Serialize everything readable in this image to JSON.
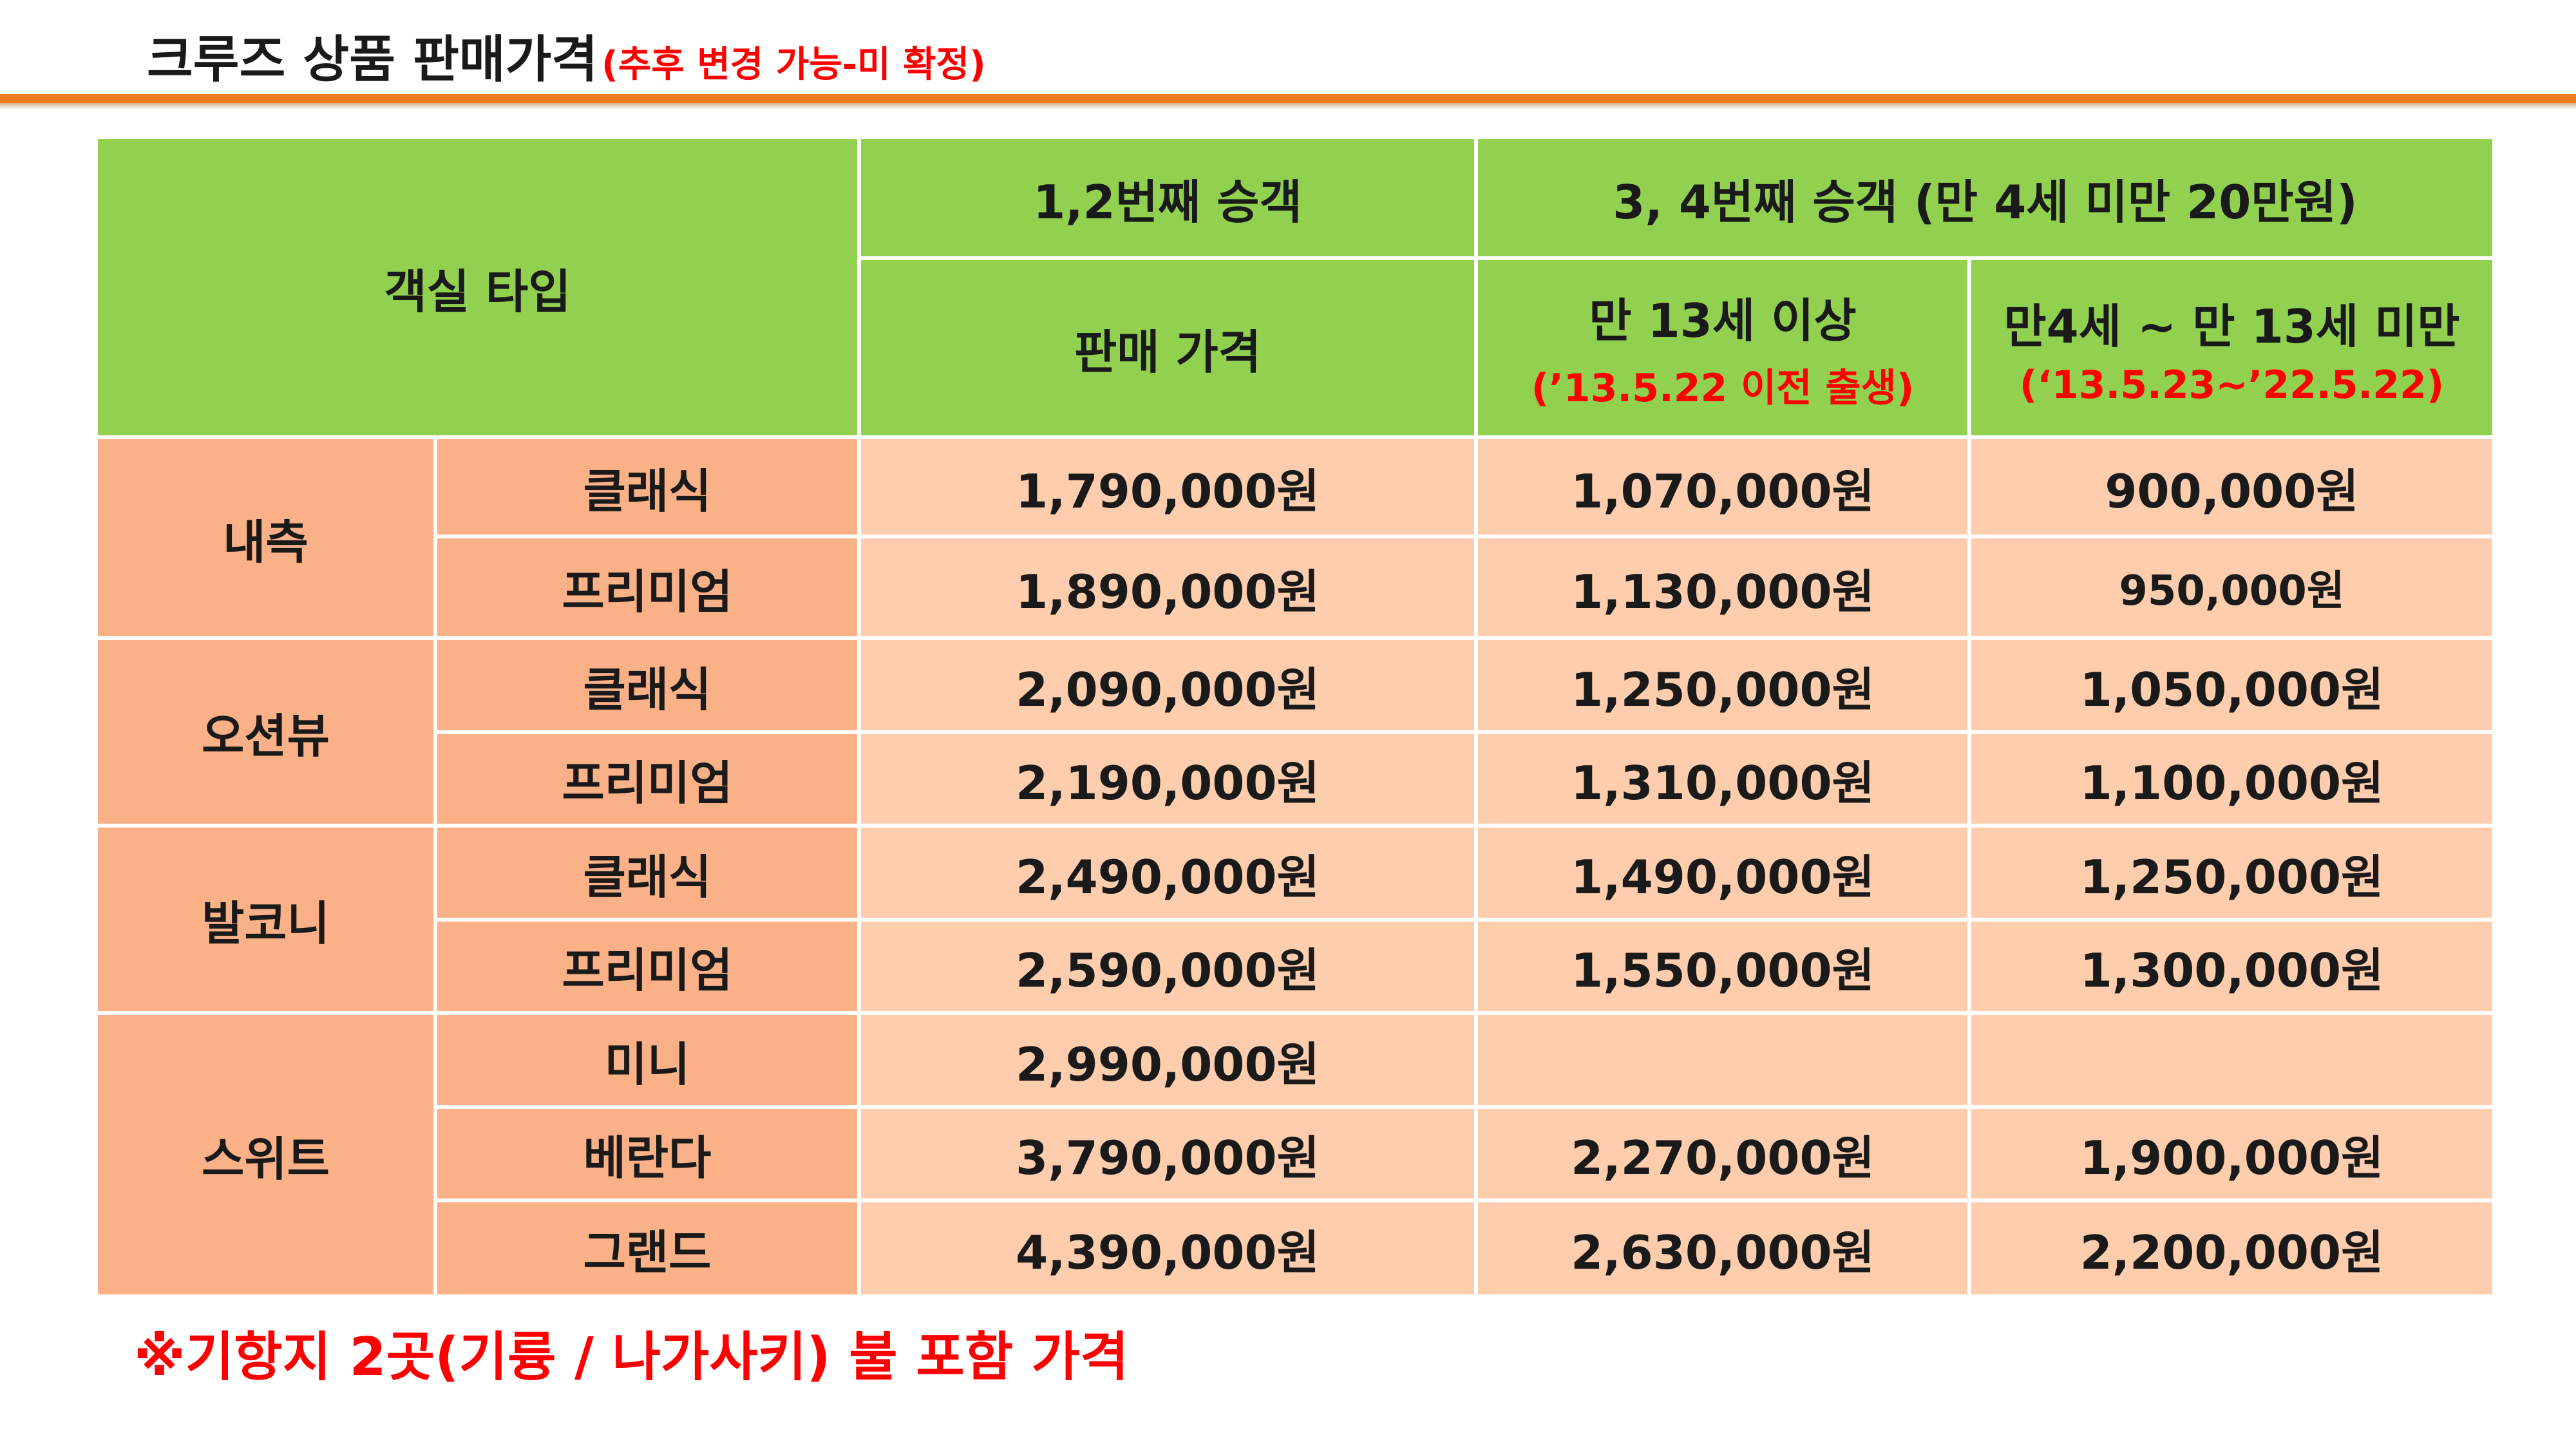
{
  "title": {
    "main": "크루즈 상품 판매가격",
    "note": "(추후 변경 가능-미 확정)"
  },
  "colors": {
    "accent_rule": "#f07d22",
    "header_green": "#92d050",
    "category_orange": "#fbb187",
    "cell_peach": "#fdcdae",
    "alert_red": "#ff0000"
  },
  "table": {
    "header": {
      "room_type": "객실 타입",
      "group_12": "1,2번째 승객",
      "group_34": "3, 4번째 승객 (만 4세 미만 20만원)",
      "col_price": "판매 가격",
      "col_13plus": "만 13세 이상",
      "col_13plus_note": "(’13.5.22 이전 출생)",
      "col_4to13": "만4세 ~ 만 13세 미만",
      "col_4to13_note": "(‘13.5.23~’22.5.22)"
    },
    "categories": [
      {
        "name": "내측",
        "rows": [
          {
            "grade": "클래식",
            "price": "1,790,000원",
            "age13": "1,070,000원",
            "age4": "900,000원"
          },
          {
            "grade": "프리미엄",
            "price": "1,890,000원",
            "age13": "1,130,000원",
            "age4": "950,000원"
          }
        ]
      },
      {
        "name": "오션뷰",
        "rows": [
          {
            "grade": "클래식",
            "price": "2,090,000원",
            "age13": "1,250,000원",
            "age4": "1,050,000원"
          },
          {
            "grade": "프리미엄",
            "price": "2,190,000원",
            "age13": "1,310,000원",
            "age4": "1,100,000원"
          }
        ]
      },
      {
        "name": "발코니",
        "rows": [
          {
            "grade": "클래식",
            "price": "2,490,000원",
            "age13": "1,490,000원",
            "age4": "1,250,000원"
          },
          {
            "grade": "프리미엄",
            "price": "2,590,000원",
            "age13": "1,550,000원",
            "age4": "1,300,000원"
          }
        ]
      },
      {
        "name": "스위트",
        "rows": [
          {
            "grade": "미니",
            "price": "2,990,000원",
            "age13": "",
            "age4": ""
          },
          {
            "grade": "베란다",
            "price": "3,790,000원",
            "age13": "2,270,000원",
            "age4": "1,900,000원"
          },
          {
            "grade": "그랜드",
            "price": "4,390,000원",
            "age13": "2,630,000원",
            "age4": "2,200,000원"
          }
        ]
      }
    ]
  },
  "footnote": "※기항지 2곳(기륭 / 나가사키) 불 포함 가격"
}
